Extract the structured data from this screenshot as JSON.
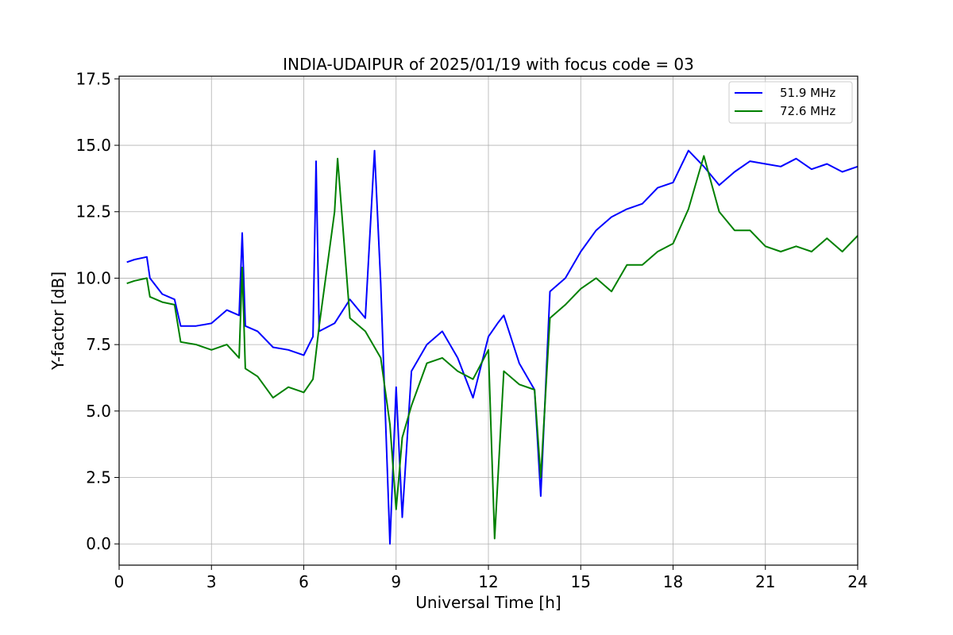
{
  "chart_data": {
    "type": "line",
    "title": "INDIA-UDAIPUR of 2025/01/19 with focus code = 03",
    "xlabel": "Universal Time [h]",
    "ylabel": "Y-factor [dB]",
    "xlim": [
      0,
      24
    ],
    "ylim": [
      -0.8,
      17.6
    ],
    "xticks": [
      0,
      3,
      6,
      9,
      12,
      15,
      18,
      21,
      24
    ],
    "xtick_labels": [
      "0",
      "3",
      "6",
      "9",
      "12",
      "15",
      "18",
      "21",
      "24"
    ],
    "yticks": [
      0.0,
      2.5,
      5.0,
      7.5,
      10.0,
      12.5,
      15.0,
      17.5
    ],
    "ytick_labels": [
      "0.0",
      "2.5",
      "5.0",
      "7.5",
      "10.0",
      "12.5",
      "15.0",
      "17.5"
    ],
    "grid": true,
    "legend_position": "top-right",
    "series": [
      {
        "name": "51.9 MHz",
        "color": "#0000ff",
        "x": [
          0.25,
          0.5,
          0.9,
          1.0,
          1.4,
          1.8,
          2.0,
          2.5,
          3.0,
          3.5,
          3.9,
          4.0,
          4.1,
          4.5,
          5.0,
          5.5,
          6.0,
          6.3,
          6.4,
          6.5,
          7.0,
          7.5,
          8.0,
          8.3,
          8.5,
          8.8,
          9.0,
          9.2,
          9.5,
          10.0,
          10.5,
          11.0,
          11.5,
          12.0,
          12.3,
          12.5,
          13.0,
          13.5,
          13.7,
          14.0,
          14.5,
          15.0,
          15.5,
          16.0,
          16.5,
          17.0,
          17.5,
          18.0,
          18.5,
          19.0,
          19.5,
          20.0,
          20.5,
          21.0,
          21.5,
          22.0,
          22.5,
          23.0,
          23.5,
          24.0
        ],
        "y": [
          10.6,
          10.7,
          10.8,
          10.0,
          9.4,
          9.2,
          8.2,
          8.2,
          8.3,
          8.8,
          8.6,
          11.7,
          8.2,
          8.0,
          7.4,
          7.3,
          7.1,
          7.8,
          14.4,
          8.0,
          8.3,
          9.2,
          8.5,
          14.8,
          9.8,
          0.0,
          5.9,
          1.0,
          6.5,
          7.5,
          8.0,
          7.0,
          5.5,
          7.8,
          8.3,
          8.6,
          6.8,
          5.8,
          1.8,
          9.5,
          10.0,
          11.0,
          11.8,
          12.3,
          12.6,
          12.8,
          13.4,
          13.6,
          14.8,
          14.2,
          13.5,
          14.0,
          14.4,
          14.3,
          14.2,
          14.5,
          14.1,
          14.3,
          14.0,
          14.2
        ]
      },
      {
        "name": "72.6 MHz",
        "color": "#008000",
        "x": [
          0.25,
          0.5,
          0.9,
          1.0,
          1.4,
          1.8,
          2.0,
          2.5,
          3.0,
          3.5,
          3.9,
          4.0,
          4.1,
          4.5,
          5.0,
          5.5,
          6.0,
          6.3,
          6.5,
          7.0,
          7.1,
          7.5,
          8.0,
          8.5,
          8.8,
          9.0,
          9.2,
          9.5,
          10.0,
          10.5,
          11.0,
          11.5,
          12.0,
          12.2,
          12.5,
          13.0,
          13.5,
          13.7,
          14.0,
          14.5,
          15.0,
          15.5,
          16.0,
          16.5,
          17.0,
          17.5,
          18.0,
          18.5,
          19.0,
          19.5,
          20.0,
          20.5,
          21.0,
          21.5,
          22.0,
          22.5,
          23.0,
          23.5,
          24.0
        ],
        "y": [
          9.8,
          9.9,
          10.0,
          9.3,
          9.1,
          9.0,
          7.6,
          7.5,
          7.3,
          7.5,
          7.0,
          10.4,
          6.6,
          6.3,
          5.5,
          5.9,
          5.7,
          6.2,
          8.2,
          12.5,
          14.5,
          8.5,
          8.0,
          7.0,
          4.5,
          1.3,
          4.0,
          5.2,
          6.8,
          7.0,
          6.5,
          6.2,
          7.3,
          0.2,
          6.5,
          6.0,
          5.8,
          2.5,
          8.5,
          9.0,
          9.6,
          10.0,
          9.5,
          10.5,
          10.5,
          11.0,
          11.3,
          12.6,
          14.6,
          12.5,
          11.8,
          11.8,
          11.2,
          11.0,
          11.2,
          11.0,
          11.5,
          11.0,
          11.6
        ]
      }
    ]
  }
}
